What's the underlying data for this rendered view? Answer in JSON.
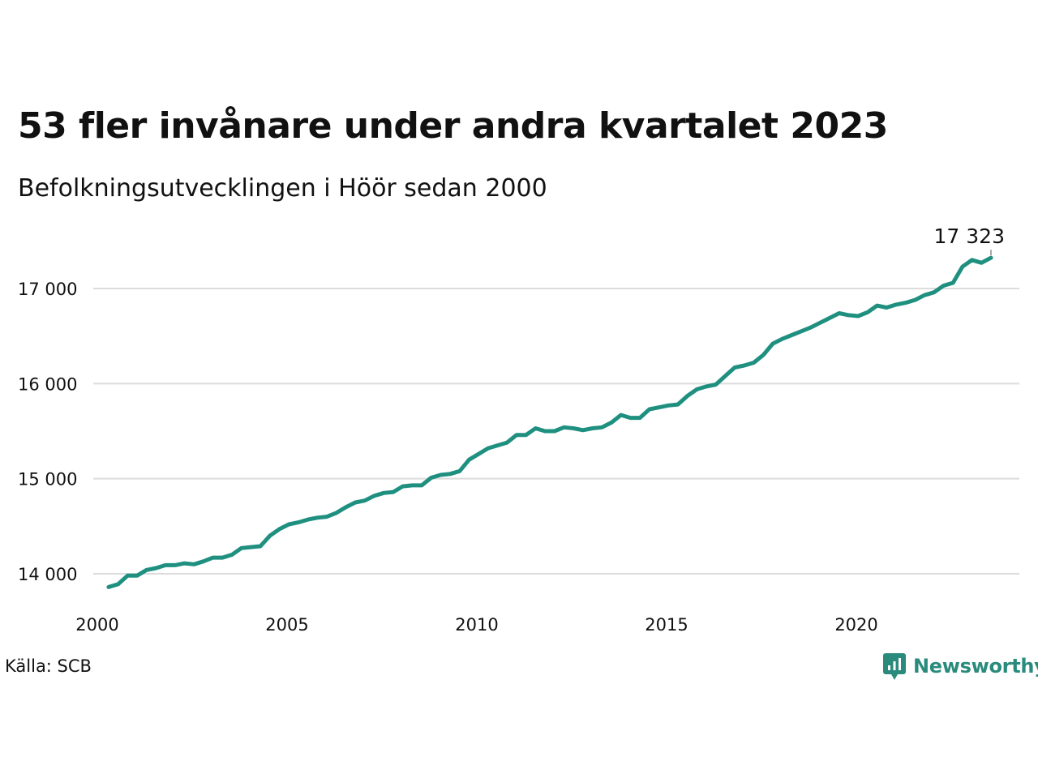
{
  "title": "53 fler invånare under andra kvartalet 2023",
  "subtitle": "Befolkningsutvecklingen i Höör sedan 2000",
  "source": "Källa: SCB",
  "brand": {
    "name": "Newsworthy",
    "icon": "newsworthy-logo-icon",
    "color": "#2a8b7d"
  },
  "chart_data": {
    "type": "line",
    "x_axis": {
      "range": [
        2000,
        2024.5
      ],
      "ticks": [
        2000,
        2005,
        2010,
        2015,
        2020
      ],
      "tick_labels": [
        "2000",
        "2005",
        "2010",
        "2015",
        "2020"
      ]
    },
    "y_axis": {
      "range": [
        13650,
        17450
      ],
      "ticks": [
        14000,
        15000,
        16000,
        17000
      ],
      "tick_labels": [
        "14 000",
        "15 000",
        "16 000",
        "17 000"
      ],
      "grid": true
    },
    "series": [
      {
        "color": "#1f9080",
        "points": [
          [
            2000.125,
            13860
          ],
          [
            2000.375,
            13890
          ],
          [
            2000.625,
            13980
          ],
          [
            2000.875,
            13980
          ],
          [
            2001.125,
            14040
          ],
          [
            2001.375,
            14060
          ],
          [
            2001.625,
            14090
          ],
          [
            2001.875,
            14090
          ],
          [
            2002.125,
            14110
          ],
          [
            2002.375,
            14100
          ],
          [
            2002.625,
            14130
          ],
          [
            2002.875,
            14170
          ],
          [
            2003.125,
            14170
          ],
          [
            2003.375,
            14200
          ],
          [
            2003.625,
            14270
          ],
          [
            2003.875,
            14280
          ],
          [
            2004.125,
            14290
          ],
          [
            2004.375,
            14400
          ],
          [
            2004.625,
            14470
          ],
          [
            2004.875,
            14520
          ],
          [
            2005.125,
            14540
          ],
          [
            2005.375,
            14570
          ],
          [
            2005.625,
            14590
          ],
          [
            2005.875,
            14600
          ],
          [
            2006.125,
            14640
          ],
          [
            2006.375,
            14700
          ],
          [
            2006.625,
            14750
          ],
          [
            2006.875,
            14770
          ],
          [
            2007.125,
            14820
          ],
          [
            2007.375,
            14850
          ],
          [
            2007.625,
            14860
          ],
          [
            2007.875,
            14920
          ],
          [
            2008.125,
            14930
          ],
          [
            2008.375,
            14930
          ],
          [
            2008.625,
            15010
          ],
          [
            2008.875,
            15040
          ],
          [
            2009.125,
            15050
          ],
          [
            2009.375,
            15080
          ],
          [
            2009.625,
            15200
          ],
          [
            2009.875,
            15260
          ],
          [
            2010.125,
            15320
          ],
          [
            2010.375,
            15350
          ],
          [
            2010.625,
            15380
          ],
          [
            2010.875,
            15460
          ],
          [
            2011.125,
            15460
          ],
          [
            2011.375,
            15530
          ],
          [
            2011.625,
            15500
          ],
          [
            2011.875,
            15500
          ],
          [
            2012.125,
            15540
          ],
          [
            2012.375,
            15530
          ],
          [
            2012.625,
            15510
          ],
          [
            2012.875,
            15530
          ],
          [
            2013.125,
            15540
          ],
          [
            2013.375,
            15590
          ],
          [
            2013.625,
            15670
          ],
          [
            2013.875,
            15640
          ],
          [
            2014.125,
            15640
          ],
          [
            2014.375,
            15730
          ],
          [
            2014.625,
            15750
          ],
          [
            2014.875,
            15770
          ],
          [
            2015.125,
            15780
          ],
          [
            2015.375,
            15870
          ],
          [
            2015.625,
            15940
          ],
          [
            2015.875,
            15970
          ],
          [
            2016.125,
            15990
          ],
          [
            2016.375,
            16080
          ],
          [
            2016.625,
            16170
          ],
          [
            2016.875,
            16190
          ],
          [
            2017.125,
            16220
          ],
          [
            2017.375,
            16300
          ],
          [
            2017.625,
            16420
          ],
          [
            2017.875,
            16470
          ],
          [
            2018.125,
            16510
          ],
          [
            2018.375,
            16550
          ],
          [
            2018.625,
            16590
          ],
          [
            2018.875,
            16640
          ],
          [
            2019.125,
            16690
          ],
          [
            2019.375,
            16740
          ],
          [
            2019.625,
            16720
          ],
          [
            2019.875,
            16710
          ],
          [
            2020.125,
            16750
          ],
          [
            2020.375,
            16820
          ],
          [
            2020.625,
            16800
          ],
          [
            2020.875,
            16830
          ],
          [
            2021.125,
            16850
          ],
          [
            2021.375,
            16880
          ],
          [
            2021.625,
            16930
          ],
          [
            2021.875,
            16960
          ],
          [
            2022.125,
            17030
          ],
          [
            2022.375,
            17060
          ],
          [
            2022.625,
            17230
          ],
          [
            2022.875,
            17300
          ],
          [
            2023.125,
            17270
          ],
          [
            2023.375,
            17323
          ]
        ]
      }
    ],
    "annotation": {
      "x": 2023.375,
      "y": 17323,
      "label": "17 323"
    }
  }
}
